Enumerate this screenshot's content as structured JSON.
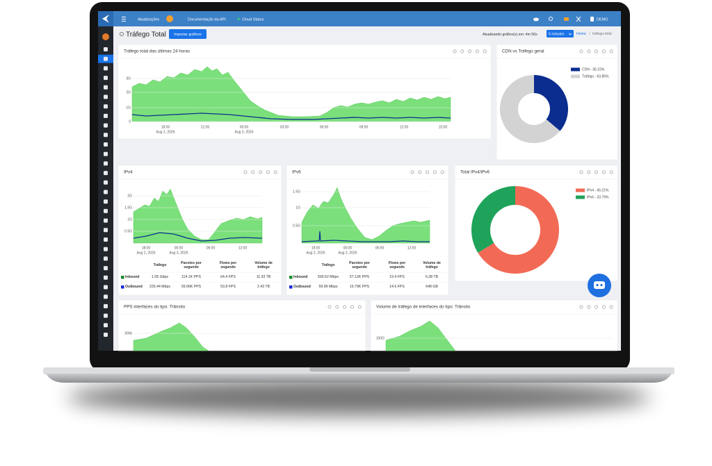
{
  "topbar": {
    "links": [
      "Atualizações",
      "Documentação da API",
      "Cloud Status"
    ],
    "user": "DEMO"
  },
  "header": {
    "title": "Tráfego Total",
    "button": "Importar gráficos",
    "refresh": "Atualizando gráfico(s) em: 4m 50s",
    "interval": "5 minutes",
    "breadcrumb": [
      "Home",
      "/",
      "tráfego-total"
    ]
  },
  "cards": {
    "total": {
      "title": "Tráfego total das últimas 24 horas",
      "yticks": [
        "3G",
        "2G",
        "1G",
        "0"
      ],
      "xticks": [
        {
          "time": "18:00",
          "date": "Aug 2, 2026"
        },
        {
          "time": "21:00"
        },
        {
          "time": "00:00",
          "date": "Aug 3, 2026"
        },
        {
          "time": "03:00"
        },
        {
          "time": "06:00"
        },
        {
          "time": "09:00"
        },
        {
          "time": "12:00"
        },
        {
          "time": "15:00"
        }
      ]
    },
    "cdn": {
      "title": "CDN vs Tráfego geral",
      "series": [
        {
          "name": "CDN - 36.15%",
          "value": 36.15,
          "color": "#0b2d8f"
        },
        {
          "name": "Tráfego - 63.85%",
          "value": 63.85,
          "color": "#d3d3d3"
        }
      ]
    },
    "ipv4": {
      "title": "IPv4",
      "yticks": [
        "2G",
        "1.5G",
        "1G",
        "0.5G"
      ],
      "xticks": [
        {
          "time": "18:00",
          "date": "Aug 2, 2026"
        },
        {
          "time": "00:00",
          "date": "Aug 3, 2026"
        },
        {
          "time": "06:00"
        },
        {
          "time": "12:00"
        }
      ],
      "table": {
        "headers": [
          "Tráfego",
          "Pacotes por segundo",
          "Flows por segundo",
          "Volume de tráfego"
        ],
        "rows": [
          [
            "Inbound",
            "1.05 Gbps",
            "114.1K PPS",
            "64.4 FPS",
            "11.33 TB"
          ],
          [
            "Outbound",
            "225.44 Mbps",
            "59.06K PPS",
            "53.8 FPS",
            "2.43 TB"
          ]
        ]
      }
    },
    "ipv6": {
      "title": "IPv6",
      "yticks": [
        "1.5G",
        "1G",
        "0.5G"
      ],
      "xticks": [
        {
          "time": "18:00",
          "date": "Aug 2, 2026"
        },
        {
          "time": "00:00",
          "date": "Aug 3, 2026"
        },
        {
          "time": "06:00"
        },
        {
          "time": "12:00"
        }
      ],
      "table": {
        "headers": [
          "Tráfego",
          "Pacotes por segundo",
          "Flows por segundo",
          "Volume de tráfego"
        ],
        "rows": [
          [
            "Inbound",
            "590.62 Mbps",
            "57.12K PPS",
            "19.4 FPS",
            "6.38 TB"
          ],
          [
            "Outbound",
            "59.99 Mbps",
            "19.79K PPS",
            "14.6 FPS",
            "648 GB"
          ]
        ]
      }
    },
    "mix": {
      "title": "Total IPv4/IPv6",
      "series": [
        {
          "name": "IPv4 - 66.21%",
          "value": 66.21,
          "color": "#f26a55"
        },
        {
          "name": "IPv6 - 33.79%",
          "value": 33.79,
          "color": "#1fa35a"
        }
      ]
    },
    "pps": {
      "title": "PPS interfaces do tipo: Trânsito",
      "yticks": [
        "300k"
      ]
    },
    "vol": {
      "title": "Volume de tráfego de interfaces do tipo: Trânsito",
      "yticks": [
        "100G"
      ]
    }
  }
}
